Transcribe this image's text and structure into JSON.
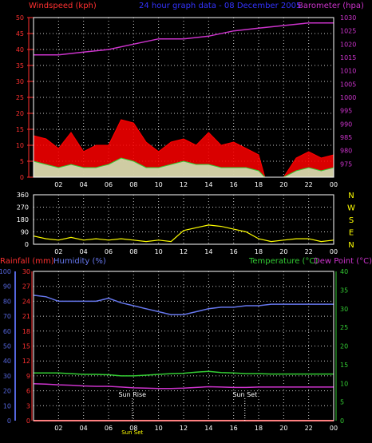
{
  "colors": {
    "background": "#000000",
    "grid": "#c8c8c8",
    "wind_axis": "#ff3030",
    "wind_series": "#ff0000",
    "gust_series": "#ff0000",
    "avg_series": "#33cc33",
    "dir_series": "#ffff00",
    "baro_series": "#cc33cc",
    "baro_axis": "#cc33cc",
    "title": "#3333ff",
    "rain_axis": "#ff3030",
    "humidity": "#6677ee",
    "humidity_axis": "#5566dd",
    "temperature": "#33cc33",
    "temp_axis": "#33cc33",
    "dewpoint": "#cc33cc",
    "text_white": "#ffffff"
  },
  "chart_data": [
    {
      "type": "line",
      "title": "24 hour graph data - 08 December 2005",
      "legend_left": "Windspeed (kph)",
      "legend_right": "Barometer (hpa)",
      "x_ticks": [
        "02",
        "04",
        "06",
        "08",
        "10",
        "12",
        "14",
        "16",
        "18",
        "20",
        "22",
        "00"
      ],
      "ylim_left": [
        0,
        50
      ],
      "y_ticks_left": [
        "0",
        "5",
        "10",
        "15",
        "20",
        "25",
        "30",
        "35",
        "40",
        "45",
        "50"
      ],
      "ylim_right": [
        970,
        1030
      ],
      "y_ticks_right": [
        "975",
        "980",
        "985",
        "990",
        "995",
        "1000",
        "1005",
        "1010",
        "1015",
        "1020",
        "1025",
        "1030"
      ],
      "grid": true,
      "series": [
        {
          "name": "Barometer",
          "x": [
            0,
            2,
            4,
            6,
            8,
            10,
            12,
            14,
            16,
            18,
            20,
            22,
            24
          ],
          "values": [
            1016,
            1016,
            1017,
            1018,
            1020,
            1022,
            1022,
            1023,
            1025,
            1026,
            1027,
            1028,
            1028
          ]
        },
        {
          "name": "Gust",
          "x": [
            0,
            1,
            2,
            3,
            4,
            5,
            6,
            7,
            8,
            9,
            10,
            11,
            12,
            13,
            14,
            15,
            16,
            17,
            18,
            18.5,
            19,
            20,
            21,
            22,
            23,
            24
          ],
          "values": [
            13,
            12,
            9,
            14,
            8,
            10,
            10,
            18,
            17,
            11,
            8,
            11,
            12,
            10,
            14,
            10,
            11,
            9,
            7,
            0,
            0,
            0,
            6,
            8,
            6,
            7
          ]
        },
        {
          "name": "Average",
          "x": [
            0,
            1,
            2,
            3,
            4,
            5,
            6,
            7,
            8,
            9,
            10,
            11,
            12,
            13,
            14,
            15,
            16,
            17,
            18,
            18.5,
            19,
            20,
            21,
            22,
            23,
            24
          ],
          "values": [
            5,
            4,
            3,
            4,
            3,
            3,
            4,
            6,
            5,
            3,
            3,
            4,
            5,
            4,
            4,
            3,
            3,
            3,
            2,
            0,
            0,
            0,
            2,
            3,
            2,
            3
          ]
        }
      ]
    },
    {
      "type": "line",
      "x_ticks": [
        "02",
        "04",
        "06",
        "08",
        "10",
        "12",
        "14",
        "16",
        "18",
        "20",
        "22",
        "00"
      ],
      "ylim": [
        0,
        360
      ],
      "y_ticks": [
        "0",
        "90",
        "180",
        "270",
        "360"
      ],
      "compass_labels": [
        "N",
        "W",
        "S",
        "E",
        "N"
      ],
      "grid": true,
      "series": [
        {
          "name": "Direction",
          "x": [
            0,
            1,
            2,
            3,
            4,
            5,
            6,
            7,
            8,
            9,
            10,
            11,
            12,
            13,
            14,
            15,
            16,
            17,
            18,
            19,
            20,
            21,
            22,
            23,
            24
          ],
          "values": [
            60,
            40,
            30,
            50,
            30,
            40,
            30,
            40,
            30,
            20,
            30,
            20,
            100,
            120,
            140,
            130,
            110,
            90,
            40,
            20,
            30,
            40,
            40,
            20,
            30
          ]
        }
      ]
    },
    {
      "type": "line",
      "legend": [
        "Rainfall (mm)",
        "Humidity (%)",
        "Temperature (°C)",
        "Dew Point (°C)"
      ],
      "x_ticks": [
        "02",
        "04",
        "06",
        "08",
        "10",
        "12",
        "14",
        "16",
        "18",
        "20",
        "22",
        "00"
      ],
      "ylim_humidity": [
        0,
        100
      ],
      "y_ticks_humidity": [
        "0",
        "10",
        "20",
        "30",
        "40",
        "50",
        "60",
        "70",
        "80",
        "90",
        "100"
      ],
      "ylim_rain": [
        0,
        30
      ],
      "y_ticks_rain": [
        "0",
        "3",
        "6",
        "9",
        "12",
        "15",
        "18",
        "21",
        "24",
        "27",
        "30"
      ],
      "ylim_temp": [
        0,
        40
      ],
      "y_ticks_temp": [
        "0",
        "5",
        "10",
        "15",
        "20",
        "25",
        "30",
        "35",
        "40"
      ],
      "annotations": [
        {
          "label": "Sun Rise",
          "hour": 7.9
        },
        {
          "label": "Sun Set",
          "hour": 16.9
        }
      ],
      "bottom_label": "Sun Set",
      "grid": true,
      "series": [
        {
          "name": "Humidity",
          "x": [
            0,
            1,
            2,
            3,
            4,
            5,
            6,
            7,
            8,
            9,
            10,
            11,
            12,
            13,
            14,
            15,
            16,
            17,
            18,
            19,
            20,
            21,
            22,
            23,
            24
          ],
          "values": [
            84,
            83,
            80,
            80,
            80,
            80,
            82,
            79,
            77,
            75,
            73,
            71,
            71,
            73,
            75,
            76,
            76,
            77,
            77,
            78,
            78,
            78,
            78,
            78,
            78
          ]
        },
        {
          "name": "Temperature",
          "x": [
            0,
            1,
            2,
            3,
            4,
            5,
            6,
            7,
            8,
            9,
            10,
            11,
            12,
            13,
            14,
            15,
            16,
            17,
            18,
            19,
            20,
            21,
            22,
            23,
            24
          ],
          "values": [
            12.8,
            12.8,
            12.8,
            12.6,
            12.4,
            12.4,
            12.3,
            12.0,
            12.0,
            12.2,
            12.4,
            12.6,
            12.7,
            13.0,
            13.2,
            12.9,
            12.8,
            12.6,
            12.6,
            12.5,
            12.5,
            12.5,
            12.5,
            12.5,
            12.5
          ]
        },
        {
          "name": "Dew Point",
          "x": [
            0,
            1,
            2,
            3,
            4,
            5,
            6,
            7,
            8,
            9,
            10,
            11,
            12,
            13,
            14,
            15,
            16,
            17,
            18,
            19,
            20,
            21,
            22,
            23,
            24
          ],
          "values": [
            9.9,
            9.8,
            9.6,
            9.5,
            9.3,
            9.2,
            9.2,
            9.0,
            8.8,
            8.7,
            8.6,
            8.6,
            8.7,
            8.9,
            9.1,
            9.0,
            8.9,
            8.9,
            9.0,
            9.0,
            9.0,
            9.0,
            9.0,
            9.0,
            9.0
          ]
        },
        {
          "name": "Rainfall",
          "x": [
            0,
            24
          ],
          "values": [
            0,
            0
          ]
        }
      ]
    }
  ]
}
